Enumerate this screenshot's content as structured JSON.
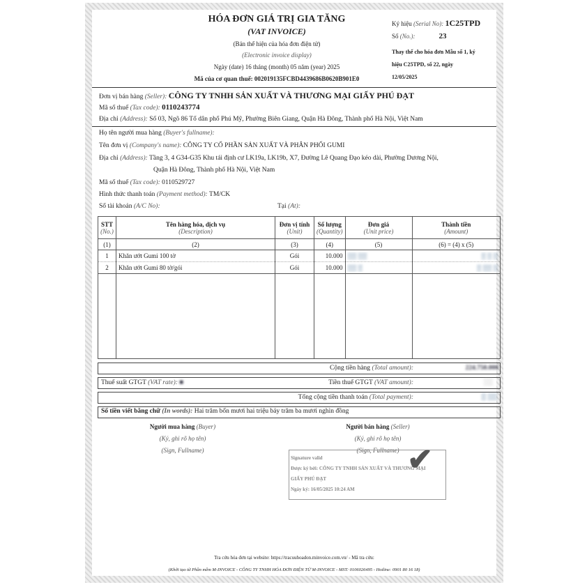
{
  "header": {
    "title": "HÓA ĐƠN GIÁ TRỊ GIA TĂNG",
    "subtitle": "(VAT INVOICE)",
    "display_vi": "(Bản thể hiện của hóa đơn điện tử)",
    "display_en": "(Electronic invoice display)",
    "date_line": "Ngày (date) 16 tháng (month) 05 năm (year) 2025",
    "tax_authority_code_label": "Mã của cơ quan thuế:",
    "tax_authority_code": "002019135FCBD4439686B0620B901E0"
  },
  "serial": {
    "label": "Ký hiệu",
    "label_en": "(Serial No):",
    "value": "1C25TPD",
    "no_label": "Số",
    "no_label_en": "(No.):",
    "no_value": "23",
    "replace_note": [
      "Thay thế cho hóa đơn Mẫu số 1, ký",
      "hiệu C25TPD, số 22, ngày",
      "12/05/2025"
    ]
  },
  "seller": {
    "name_label": "Đơn vị bán hàng",
    "name_label_en": "(Seller):",
    "name": "CÔNG TY TNHH SẢN XUẤT VÀ THƯƠNG MẠI GIẤY PHÚ ĐẠT",
    "tax_label": "Mã số thuế",
    "tax_label_en": "(Tax code):",
    "tax_code": "0110243774",
    "addr_label": "Địa chỉ",
    "addr_label_en": "(Address):",
    "address": "Số 03, Ngõ 86 Tổ dân phố Phú Mỹ, Phường Biên Giang, Quận Hà Đông, Thành phố Hà Nội, Việt Nam"
  },
  "buyer": {
    "fullname_label": "Họ tên người mua hàng",
    "fullname_label_en": "(Buyer's fullname):",
    "company_label": "Tên đơn vị",
    "company_label_en": "(Company's name):",
    "company": "CÔNG TY CỔ PHẦN SẢN XUẤT VÀ PHÂN PHỐI GUMI",
    "addr_label": "Địa chỉ",
    "addr_label_en": "(Address):",
    "address_1": "Tầng 3, 4 G34-G35 Khu tái định cư LK19a, LK19b, X7, Đường Lê Quang Đạo kéo dài, Phường Dương Nội,",
    "address_2": "Quận Hà Đông, Thành phố Hà Nội, Việt Nam",
    "tax_label": "Mã số thuế",
    "tax_label_en": "(Tax code):",
    "tax_code": "0110529727",
    "payment_label": "Hình thức thanh toán",
    "payment_label_en": "(Payment method):",
    "payment": "TM/CK",
    "account_label": "Số tài khoản",
    "account_label_en": "(A/C No):",
    "at_label": "Tại",
    "at_label_en": "(At):"
  },
  "table": {
    "headers": [
      {
        "vi": "STT",
        "en": "(No.)",
        "num": "(1)"
      },
      {
        "vi": "Tên hàng hóa, dịch vụ",
        "en": "(Description)",
        "num": "(2)"
      },
      {
        "vi": "Đơn vị tính",
        "en": "(Unit)",
        "num": "(3)"
      },
      {
        "vi": "Số lượng",
        "en": "(Quantity)",
        "num": "(4)"
      },
      {
        "vi": "Đơn giá",
        "en": "(Unit price)",
        "num": "(5)"
      },
      {
        "vi": "Thành tiền",
        "en": "(Amount)",
        "num": "(6) = (4) x (5)"
      }
    ],
    "rows": [
      {
        "no": "1",
        "desc": "Khăn ướt Gumi 100 tờ",
        "unit": "Gói",
        "qty": "10.000"
      },
      {
        "no": "2",
        "desc": "Khăn ướt Gumi 80 tờ/gói",
        "unit": "Gói",
        "qty": "10.000"
      }
    ]
  },
  "totals": {
    "total_label": "Cộng tiền hàng",
    "total_label_en": "(Total amount):",
    "total_value": "224.750.000",
    "vat_rate_label": "Thuế suất GTGT",
    "vat_rate_label_en": "(VAT rate):",
    "vat_amount_label": "Tiền thuế GTGT",
    "vat_amount_label_en": "(VAT amount):",
    "payment_label": "Tổng cộng tiền thanh toán",
    "payment_label_en": "(Total payment):",
    "words_label": "Số tiền viết bằng chữ",
    "words_label_en": "(In words):",
    "words": "Hai trăm bốn mươi hai triệu bảy trăm ba mươi nghìn đồng"
  },
  "signatures": {
    "buyer": "Người mua hàng",
    "buyer_en": "(Buyer)",
    "seller": "Người bán hàng",
    "seller_en": "(Seller)",
    "sign_vi": "(Ký, ghi rõ họ tên)",
    "sign_en": "(Sign, Fullname)",
    "valid": "Signature valid",
    "signed_by": "Được ký bởi: CÔNG TY TNHH SẢN XUẤT VÀ THƯƠNG MẠI",
    "signed_by_2": "GIẤY PHÚ ĐẠT",
    "sign_date": "Ngày ký: 16/05/2025 10:24 AM"
  },
  "footer": {
    "lookup": "Tra cứu hóa đơn tại website: https://tracuuhoadon.minvoice.com.vn/ - Mã tra cứu:",
    "generated": "(Khởi tạo từ Phần mềm M-INVOICE - CÔNG TY TNHH HÓA ĐƠN ĐIỆN TỬ M-INVOICE - MST: 0106026495 - Hotline: 0901 80 16 18)"
  }
}
